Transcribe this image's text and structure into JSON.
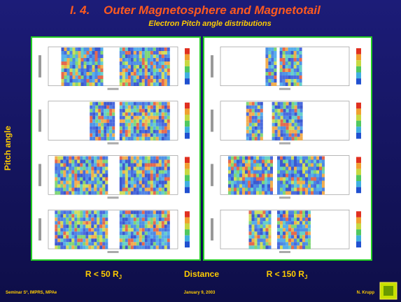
{
  "header": {
    "number": "I. 4.",
    "title": "Outer Magnetosphere and Magnetotail",
    "subtitle": "Electron Pitch angle distributions"
  },
  "side_label": "Pitch angle",
  "bottom": {
    "left": {
      "text": "R < 50 R",
      "subscript": "J"
    },
    "center": "Distance",
    "right": {
      "text": "R < 150 R",
      "subscript": "J"
    }
  },
  "footer": {
    "left": "Seminar S³, IMPRS, MPAe",
    "center": "January 9, 2003",
    "right": "N. Krupp"
  }
}
